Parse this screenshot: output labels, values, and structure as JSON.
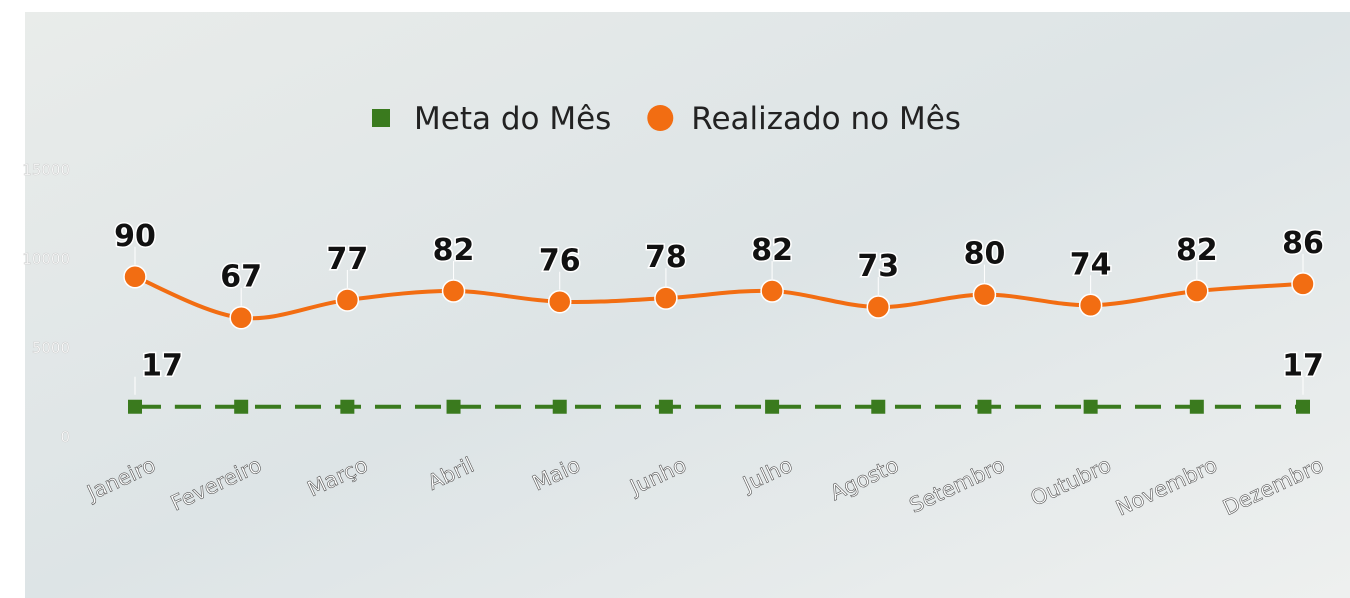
{
  "chart_data": {
    "type": "line",
    "categories": [
      "Janeiro",
      "Fevereiro",
      "Março",
      "Abril",
      "Maio",
      "Junho",
      "Julho",
      "Agosto",
      "Setembro",
      "Outubro",
      "Novembro",
      "Dezembro"
    ],
    "series": [
      {
        "name": "Meta do Mês",
        "color": "#3a7a1e",
        "dashed": true,
        "marker": "square",
        "values": [
          1700,
          1700,
          1700,
          1700,
          1700,
          1700,
          1700,
          1700,
          1700,
          1700,
          1700,
          1700
        ],
        "value_labels": [
          "17",
          null,
          null,
          null,
          null,
          null,
          null,
          null,
          null,
          null,
          null,
          "17"
        ]
      },
      {
        "name": "Realizado no Mês",
        "color": "#f26d12",
        "dashed": false,
        "marker": "circle",
        "values": [
          9000,
          6700,
          7700,
          8200,
          7600,
          7800,
          8200,
          7300,
          8000,
          7400,
          8200,
          8600
        ],
        "value_labels": [
          "90",
          "67",
          "77",
          "82",
          "76",
          "78",
          "82",
          "73",
          "80",
          "74",
          "82",
          "86"
        ]
      }
    ],
    "ylim": [
      0,
      15000
    ],
    "yticks": [
      0,
      5000,
      10000,
      15000
    ]
  }
}
